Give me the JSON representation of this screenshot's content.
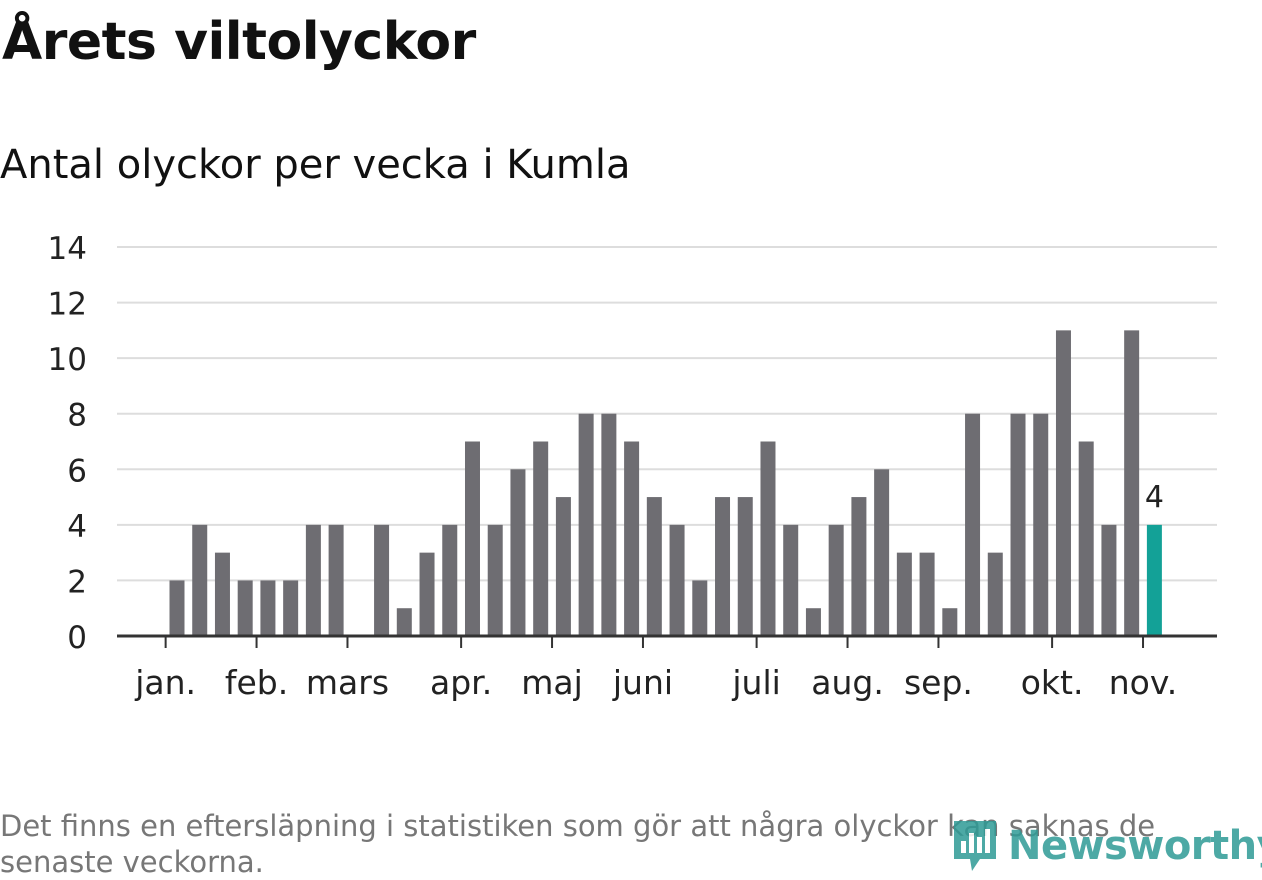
{
  "title": "Årets viltolyckor",
  "subtitle": "Antal olyckor per vecka i Kumla",
  "note": "Det finns en eftersläpning i statistiken som gör att några olyckor kan saknas de senaste veckorna.",
  "logo": {
    "text": "Newsworthy",
    "icon": "newsworthy-logo-icon"
  },
  "colors": {
    "bar": "#6e6d72",
    "highlight": "#13a197",
    "grid": "#dddddd",
    "axis": "#333333"
  },
  "chart_data": {
    "type": "bar",
    "title": "Antal olyckor per vecka i Kumla",
    "xlabel": "",
    "ylabel": "",
    "ylim": [
      0,
      14
    ],
    "yticks": [
      0,
      2,
      4,
      6,
      8,
      10,
      12,
      14
    ],
    "weeks": 46,
    "values": [
      null,
      null,
      2,
      4,
      3,
      2,
      2,
      2,
      4,
      4,
      0,
      4,
      1,
      3,
      4,
      7,
      4,
      6,
      7,
      5,
      8,
      8,
      7,
      5,
      4,
      2,
      5,
      5,
      7,
      4,
      1,
      4,
      5,
      6,
      3,
      3,
      1,
      8,
      3,
      8,
      8,
      11,
      7,
      4,
      11,
      4
    ],
    "month_ticks": [
      {
        "label": "jan.",
        "week": 1.5
      },
      {
        "label": "feb.",
        "week": 5.5
      },
      {
        "label": "mars",
        "week": 9.5
      },
      {
        "label": "apr.",
        "week": 14.5
      },
      {
        "label": "maj",
        "week": 18.5
      },
      {
        "label": "juni",
        "week": 22.5
      },
      {
        "label": "juli",
        "week": 27.5
      },
      {
        "label": "aug.",
        "week": 31.5
      },
      {
        "label": "sep.",
        "week": 35.5
      },
      {
        "label": "okt.",
        "week": 40.5
      },
      {
        "label": "nov.",
        "week": 44.5
      }
    ],
    "highlight_index": 45,
    "highlight_label": "4"
  }
}
